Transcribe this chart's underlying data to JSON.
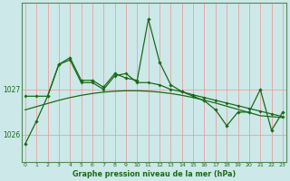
{
  "title": "Graphe pression niveau de la mer (hPa)",
  "bg_color": "#cce8e8",
  "grid_color": "#ee9999",
  "line_color": "#1a6b1a",
  "x_labels": [
    "0",
    "1",
    "2",
    "3",
    "4",
    "5",
    "6",
    "7",
    "8",
    "9",
    "10",
    "11",
    "12",
    "13",
    "14",
    "15",
    "16",
    "17",
    "18",
    "19",
    "20",
    "21",
    "22",
    "23"
  ],
  "y_ticks": [
    1026,
    1027
  ],
  "ylim": [
    1025.4,
    1028.9
  ],
  "series1": [
    1025.8,
    1026.3,
    1026.85,
    1027.55,
    1027.7,
    1027.2,
    1027.2,
    1027.05,
    1027.35,
    1027.25,
    1027.2,
    1028.55,
    1027.6,
    1027.1,
    1026.95,
    1026.85,
    1026.75,
    1026.55,
    1026.2,
    1026.5,
    1026.5,
    1027.0,
    1026.1,
    1026.5
  ],
  "series2": [
    1026.85,
    1026.85,
    1026.85,
    1027.55,
    1027.65,
    1027.15,
    1027.15,
    1027.0,
    1027.3,
    1027.35,
    1027.15,
    1027.15,
    1027.1,
    1027.0,
    1026.95,
    1026.88,
    1026.82,
    1026.76,
    1026.7,
    1026.64,
    1026.58,
    1026.52,
    1026.46,
    1026.4
  ],
  "series3": [
    1026.55,
    1026.62,
    1026.69,
    1026.76,
    1026.82,
    1026.87,
    1026.91,
    1026.94,
    1026.96,
    1026.97,
    1026.97,
    1026.96,
    1026.94,
    1026.91,
    1026.87,
    1026.82,
    1026.76,
    1026.7,
    1026.63,
    1026.56,
    1026.49,
    1026.42,
    1026.4,
    1026.38
  ]
}
